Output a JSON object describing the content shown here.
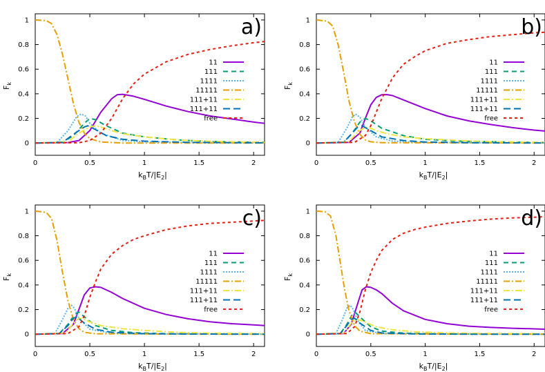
{
  "chart_data": {
    "type": "line",
    "xlabel_main": "k",
    "xlabel_sub": "B",
    "xlabel_rest": "T/|E",
    "xlabel_sub2": "2",
    "xlabel_end": "|",
    "ylabel_main": "F",
    "ylabel_sub": "k",
    "xlim": [
      0,
      2.1
    ],
    "ylim": [
      -0.1,
      1.05
    ],
    "xticks": [
      "0",
      "0.5",
      "1",
      "1.5",
      "2"
    ],
    "xtick_values": [
      0,
      0.5,
      1,
      1.5,
      2
    ],
    "yticks": [
      "0",
      "0.2",
      "0.4",
      "0.6",
      "0.8",
      "1"
    ],
    "ytick_values": [
      0,
      0.2,
      0.4,
      0.6,
      0.8,
      1
    ],
    "legend_position": "right",
    "legend_labels": [
      "11",
      "111",
      "1111",
      "11111",
      "111+11",
      "111+11",
      "free"
    ],
    "series_styles": [
      {
        "name": "11",
        "color": "#9400d3",
        "dash": ""
      },
      {
        "name": "111",
        "color": "#009e73",
        "dash": "7,5"
      },
      {
        "name": "1111",
        "color": "#56b4e9",
        "dash": "2,2"
      },
      {
        "name": "11111",
        "color": "#e69f00",
        "dash": "9,3,2,3"
      },
      {
        "name": "111+11",
        "color": "#f0e442",
        "dash": "9,3,2,3"
      },
      {
        "name": "111+11",
        "color": "#0072b2",
        "dash": "10,5"
      },
      {
        "name": "free",
        "color": "#e51e10",
        "dash": "4,4"
      }
    ],
    "panels": [
      {
        "label": "a)",
        "series": [
          {
            "name": "11",
            "x": [
              0,
              0.3,
              0.4,
              0.5,
              0.6,
              0.7,
              0.75,
              0.8,
              0.9,
              1.0,
              1.2,
              1.4,
              1.6,
              1.8,
              2.0,
              2.1
            ],
            "y": [
              0,
              0.004,
              0.02,
              0.1,
              0.25,
              0.36,
              0.392,
              0.396,
              0.38,
              0.355,
              0.3,
              0.255,
              0.22,
              0.195,
              0.17,
              0.16
            ]
          },
          {
            "name": "111",
            "x": [
              0,
              0.25,
              0.35,
              0.45,
              0.5,
              0.55,
              0.65,
              0.8,
              1.0,
              1.3,
              1.6,
              2.1
            ],
            "y": [
              0,
              0.004,
              0.06,
              0.16,
              0.2,
              0.19,
              0.14,
              0.08,
              0.05,
              0.025,
              0.012,
              0.005
            ]
          },
          {
            "name": "1111",
            "x": [
              0,
              0.2,
              0.3,
              0.38,
              0.42,
              0.46,
              0.5,
              0.6,
              0.8,
              1.0,
              1.5,
              2.1
            ],
            "y": [
              0,
              0.004,
              0.1,
              0.215,
              0.235,
              0.22,
              0.16,
              0.08,
              0.02,
              0.01,
              0.003,
              0.001
            ]
          },
          {
            "name": "11111",
            "x": [
              0,
              0.1,
              0.15,
              0.2,
              0.25,
              0.3,
              0.35,
              0.4,
              0.45,
              0.5,
              0.6,
              0.8,
              2.1
            ],
            "y": [
              1,
              0.995,
              0.97,
              0.88,
              0.72,
              0.52,
              0.32,
              0.17,
              0.08,
              0.035,
              0.008,
              0,
              0
            ]
          },
          {
            "name": "111+11",
            "x": [
              0,
              0.3,
              0.4,
              0.5,
              0.55,
              0.6,
              0.7,
              0.8,
              1.0,
              1.3,
              1.6,
              2.1
            ],
            "y": [
              0,
              0.01,
              0.08,
              0.13,
              0.14,
              0.13,
              0.1,
              0.075,
              0.05,
              0.025,
              0.013,
              0.006
            ]
          },
          {
            "name": "111+11",
            "x": [
              0,
              0.25,
              0.35,
              0.45,
              0.48,
              0.55,
              0.65,
              0.8,
              1.0,
              1.4,
              2.1
            ],
            "y": [
              0,
              0.005,
              0.07,
              0.13,
              0.14,
              0.11,
              0.06,
              0.03,
              0.015,
              0.005,
              0.001
            ]
          },
          {
            "name": "free",
            "x": [
              0,
              0.4,
              0.5,
              0.6,
              0.7,
              0.8,
              0.9,
              1.0,
              1.2,
              1.4,
              1.6,
              1.8,
              2.0,
              2.1
            ],
            "y": [
              0,
              0.002,
              0.02,
              0.08,
              0.2,
              0.36,
              0.48,
              0.56,
              0.66,
              0.72,
              0.76,
              0.79,
              0.815,
              0.825
            ]
          }
        ]
      },
      {
        "label": "b)",
        "series": [
          {
            "name": "11",
            "x": [
              0,
              0.3,
              0.4,
              0.45,
              0.5,
              0.55,
              0.6,
              0.65,
              0.7,
              0.8,
              1.0,
              1.2,
              1.4,
              1.6,
              1.8,
              2.0,
              2.1
            ],
            "y": [
              0,
              0.005,
              0.08,
              0.2,
              0.31,
              0.37,
              0.392,
              0.393,
              0.385,
              0.35,
              0.28,
              0.22,
              0.18,
              0.15,
              0.125,
              0.105,
              0.097
            ]
          },
          {
            "name": "111",
            "x": [
              0,
              0.25,
              0.33,
              0.4,
              0.45,
              0.5,
              0.6,
              0.8,
              1.0,
              1.3,
              2.1
            ],
            "y": [
              0,
              0.005,
              0.08,
              0.17,
              0.2,
              0.18,
              0.12,
              0.06,
              0.03,
              0.015,
              0.003
            ]
          },
          {
            "name": "1111",
            "x": [
              0,
              0.2,
              0.28,
              0.33,
              0.36,
              0.4,
              0.45,
              0.55,
              0.7,
              1.0,
              2.1
            ],
            "y": [
              0,
              0.005,
              0.12,
              0.21,
              0.235,
              0.21,
              0.13,
              0.05,
              0.015,
              0.004,
              0
            ]
          },
          {
            "name": "11111",
            "x": [
              0,
              0.1,
              0.15,
              0.2,
              0.25,
              0.3,
              0.35,
              0.4,
              0.45,
              0.5,
              0.6,
              2.1
            ],
            "y": [
              1,
              0.99,
              0.95,
              0.8,
              0.58,
              0.34,
              0.17,
              0.07,
              0.025,
              0.01,
              0.002,
              0
            ]
          },
          {
            "name": "111+11",
            "x": [
              0,
              0.3,
              0.38,
              0.45,
              0.5,
              0.55,
              0.65,
              0.8,
              1.0,
              1.3,
              1.6,
              2.1
            ],
            "y": [
              0,
              0.01,
              0.09,
              0.13,
              0.12,
              0.1,
              0.075,
              0.05,
              0.035,
              0.02,
              0.01,
              0.005
            ]
          },
          {
            "name": "111+11",
            "x": [
              0,
              0.25,
              0.32,
              0.38,
              0.42,
              0.5,
              0.6,
              0.8,
              1.0,
              1.4,
              2.1
            ],
            "y": [
              0,
              0.005,
              0.07,
              0.13,
              0.14,
              0.1,
              0.05,
              0.02,
              0.008,
              0.002,
              0
            ]
          },
          {
            "name": "free",
            "x": [
              0,
              0.35,
              0.45,
              0.5,
              0.55,
              0.6,
              0.7,
              0.8,
              0.9,
              1.0,
              1.2,
              1.4,
              1.6,
              1.8,
              2.0,
              2.1
            ],
            "y": [
              0,
              0.005,
              0.06,
              0.14,
              0.25,
              0.36,
              0.53,
              0.64,
              0.7,
              0.75,
              0.81,
              0.84,
              0.865,
              0.88,
              0.895,
              0.9
            ]
          }
        ]
      },
      {
        "label": "c)",
        "series": [
          {
            "name": "11",
            "x": [
              0,
              0.25,
              0.35,
              0.4,
              0.45,
              0.5,
              0.55,
              0.6,
              0.7,
              0.8,
              1.0,
              1.2,
              1.4,
              1.6,
              1.8,
              2.0,
              2.1
            ],
            "y": [
              0,
              0.005,
              0.08,
              0.2,
              0.32,
              0.375,
              0.385,
              0.38,
              0.34,
              0.29,
              0.21,
              0.16,
              0.125,
              0.1,
              0.085,
              0.075,
              0.07
            ]
          },
          {
            "name": "111",
            "x": [
              0,
              0.22,
              0.3,
              0.36,
              0.4,
              0.45,
              0.55,
              0.7,
              0.9,
              1.2,
              2.1
            ],
            "y": [
              0,
              0.005,
              0.08,
              0.16,
              0.18,
              0.14,
              0.07,
              0.03,
              0.012,
              0.004,
              0
            ]
          },
          {
            "name": "1111",
            "x": [
              0,
              0.18,
              0.25,
              0.3,
              0.33,
              0.36,
              0.4,
              0.5,
              0.7,
              1.0,
              2.1
            ],
            "y": [
              0,
              0.005,
              0.12,
              0.21,
              0.235,
              0.21,
              0.13,
              0.04,
              0.008,
              0.002,
              0
            ]
          },
          {
            "name": "11111",
            "x": [
              0,
              0.1,
              0.15,
              0.2,
              0.25,
              0.3,
              0.35,
              0.4,
              0.45,
              0.55,
              2.1
            ],
            "y": [
              1,
              0.99,
              0.94,
              0.76,
              0.5,
              0.27,
              0.12,
              0.045,
              0.015,
              0.003,
              0
            ]
          },
          {
            "name": "111+11",
            "x": [
              0,
              0.28,
              0.35,
              0.4,
              0.45,
              0.5,
              0.6,
              0.8,
              1.0,
              1.3,
              1.6,
              2.1
            ],
            "y": [
              0,
              0.01,
              0.09,
              0.13,
              0.12,
              0.1,
              0.07,
              0.045,
              0.03,
              0.015,
              0.008,
              0.004
            ]
          },
          {
            "name": "111+11",
            "x": [
              0,
              0.22,
              0.3,
              0.35,
              0.38,
              0.45,
              0.55,
              0.7,
              1.0,
              1.4,
              2.1
            ],
            "y": [
              0,
              0.005,
              0.07,
              0.13,
              0.14,
              0.09,
              0.04,
              0.015,
              0.004,
              0.001,
              0
            ]
          },
          {
            "name": "free",
            "x": [
              0,
              0.3,
              0.4,
              0.45,
              0.5,
              0.55,
              0.6,
              0.7,
              0.8,
              0.9,
              1.0,
              1.2,
              1.4,
              1.6,
              1.8,
              2.0,
              2.1
            ],
            "y": [
              0,
              0.005,
              0.06,
              0.15,
              0.3,
              0.42,
              0.53,
              0.65,
              0.72,
              0.77,
              0.8,
              0.85,
              0.88,
              0.9,
              0.91,
              0.92,
              0.925
            ]
          }
        ]
      },
      {
        "label": "d)",
        "series": [
          {
            "name": "11",
            "x": [
              0,
              0.25,
              0.32,
              0.38,
              0.42,
              0.46,
              0.5,
              0.55,
              0.6,
              0.7,
              0.8,
              1.0,
              1.2,
              1.4,
              1.6,
              1.8,
              2.0,
              2.1
            ],
            "y": [
              0,
              0.005,
              0.08,
              0.25,
              0.36,
              0.385,
              0.38,
              0.36,
              0.33,
              0.25,
              0.19,
              0.12,
              0.085,
              0.065,
              0.055,
              0.048,
              0.043,
              0.04
            ]
          },
          {
            "name": "111",
            "x": [
              0,
              0.22,
              0.28,
              0.33,
              0.36,
              0.4,
              0.5,
              0.6,
              0.8,
              1.1,
              2.1
            ],
            "y": [
              0,
              0.005,
              0.08,
              0.16,
              0.175,
              0.14,
              0.06,
              0.025,
              0.008,
              0.002,
              0
            ]
          },
          {
            "name": "1111",
            "x": [
              0,
              0.18,
              0.24,
              0.28,
              0.31,
              0.34,
              0.38,
              0.45,
              0.6,
              1.0,
              2.1
            ],
            "y": [
              0,
              0.005,
              0.12,
              0.21,
              0.235,
              0.2,
              0.11,
              0.03,
              0.005,
              0.001,
              0
            ]
          },
          {
            "name": "11111",
            "x": [
              0,
              0.08,
              0.13,
              0.18,
              0.22,
              0.26,
              0.3,
              0.35,
              0.4,
              0.5,
              2.1
            ],
            "y": [
              1,
              0.995,
              0.96,
              0.8,
              0.58,
              0.36,
              0.19,
              0.07,
              0.025,
              0.004,
              0
            ]
          },
          {
            "name": "111+11",
            "x": [
              0,
              0.26,
              0.32,
              0.37,
              0.42,
              0.48,
              0.55,
              0.7,
              0.9,
              1.2,
              1.6,
              2.1
            ],
            "y": [
              0,
              0.01,
              0.09,
              0.12,
              0.11,
              0.085,
              0.06,
              0.035,
              0.02,
              0.01,
              0.005,
              0.003
            ]
          },
          {
            "name": "111+11",
            "x": [
              0,
              0.22,
              0.28,
              0.32,
              0.35,
              0.4,
              0.5,
              0.6,
              0.9,
              1.4,
              2.1
            ],
            "y": [
              0,
              0.005,
              0.07,
              0.12,
              0.13,
              0.09,
              0.03,
              0.01,
              0.002,
              0,
              0
            ]
          },
          {
            "name": "free",
            "x": [
              0,
              0.28,
              0.35,
              0.4,
              0.45,
              0.5,
              0.55,
              0.6,
              0.7,
              0.8,
              0.9,
              1.0,
              1.2,
              1.4,
              1.6,
              1.8,
              2.0,
              2.1
            ],
            "y": [
              0,
              0.005,
              0.06,
              0.18,
              0.36,
              0.5,
              0.6,
              0.68,
              0.77,
              0.82,
              0.85,
              0.87,
              0.9,
              0.92,
              0.935,
              0.945,
              0.95,
              0.955
            ]
          }
        ]
      }
    ]
  }
}
